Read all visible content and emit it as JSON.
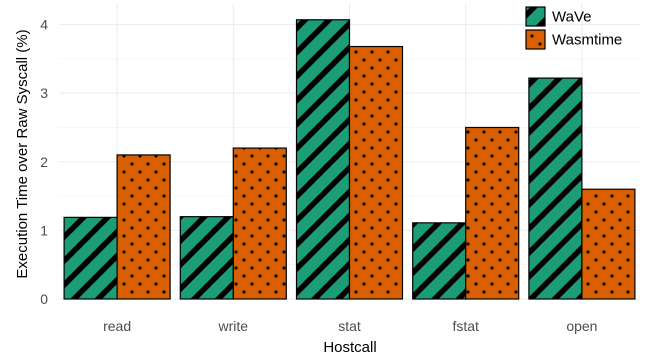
{
  "chart_data": {
    "type": "bar",
    "categories": [
      "read",
      "write",
      "stat",
      "fstat",
      "open"
    ],
    "series": [
      {
        "name": "WaVe",
        "values": [
          1.19,
          1.2,
          4.07,
          1.11,
          3.22
        ],
        "color": "#1b9e77",
        "pattern": "diagonal-stripes"
      },
      {
        "name": "Wasmtime",
        "values": [
          2.1,
          2.2,
          3.68,
          2.5,
          1.6
        ],
        "color": "#d95f02",
        "pattern": "dots"
      }
    ],
    "xlabel": "Hostcall",
    "ylabel": "Execution Time over Raw Syscall (%)",
    "ylim": [
      0,
      4.3
    ],
    "yticks": [
      "0",
      "1",
      "2",
      "3",
      "4"
    ],
    "grid": true,
    "legend_position": "top-right"
  }
}
